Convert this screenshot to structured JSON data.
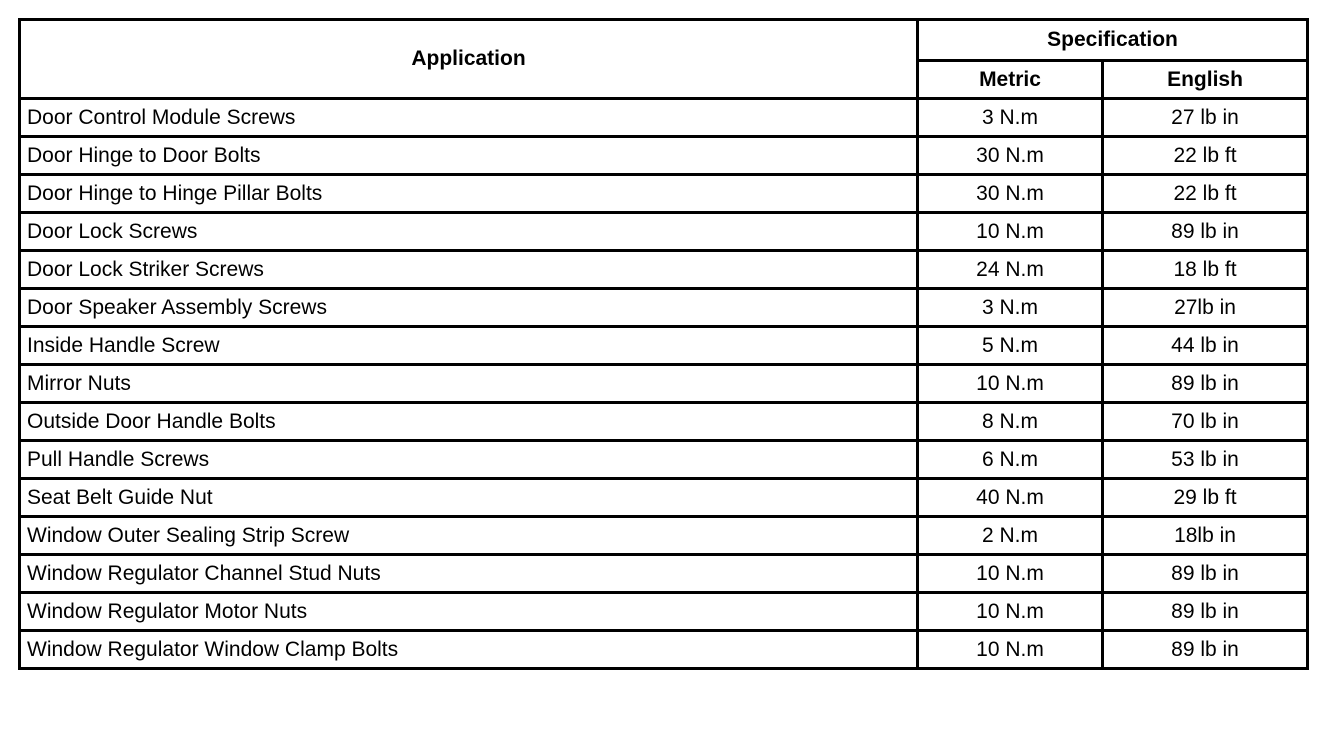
{
  "headers": {
    "application": "Application",
    "specification": "Specification",
    "metric": "Metric",
    "english": "English"
  },
  "rows": [
    {
      "application": "Door Control Module Screws",
      "metric": "3 N.m",
      "english": "27 lb in"
    },
    {
      "application": "Door Hinge to Door Bolts",
      "metric": "30 N.m",
      "english": "22 lb ft"
    },
    {
      "application": "Door Hinge to Hinge Pillar Bolts",
      "metric": "30 N.m",
      "english": "22 lb ft"
    },
    {
      "application": "Door Lock Screws",
      "metric": "10 N.m",
      "english": "89 lb in"
    },
    {
      "application": "Door Lock Striker Screws",
      "metric": "24 N.m",
      "english": "18 lb ft"
    },
    {
      "application": "Door Speaker Assembly Screws",
      "metric": "3 N.m",
      "english": "27lb in"
    },
    {
      "application": "Inside Handle Screw",
      "metric": "5 N.m",
      "english": "44 lb in"
    },
    {
      "application": "Mirror Nuts",
      "metric": "10 N.m",
      "english": "89 lb in"
    },
    {
      "application": "Outside Door Handle Bolts",
      "metric": "8 N.m",
      "english": "70 lb in"
    },
    {
      "application": "Pull Handle Screws",
      "metric": "6 N.m",
      "english": "53 lb in"
    },
    {
      "application": "Seat Belt Guide Nut",
      "metric": "40 N.m",
      "english": "29 lb ft"
    },
    {
      "application": "Window Outer Sealing Strip Screw",
      "metric": "2 N.m",
      "english": "18lb in"
    },
    {
      "application": "Window Regulator Channel Stud Nuts",
      "metric": "10 N.m",
      "english": "89 lb in"
    },
    {
      "application": "Window Regulator Motor Nuts",
      "metric": "10 N.m",
      "english": "89 lb in"
    },
    {
      "application": "Window Regulator Window Clamp Bolts",
      "metric": "10 N.m",
      "english": "89 lb in"
    }
  ]
}
